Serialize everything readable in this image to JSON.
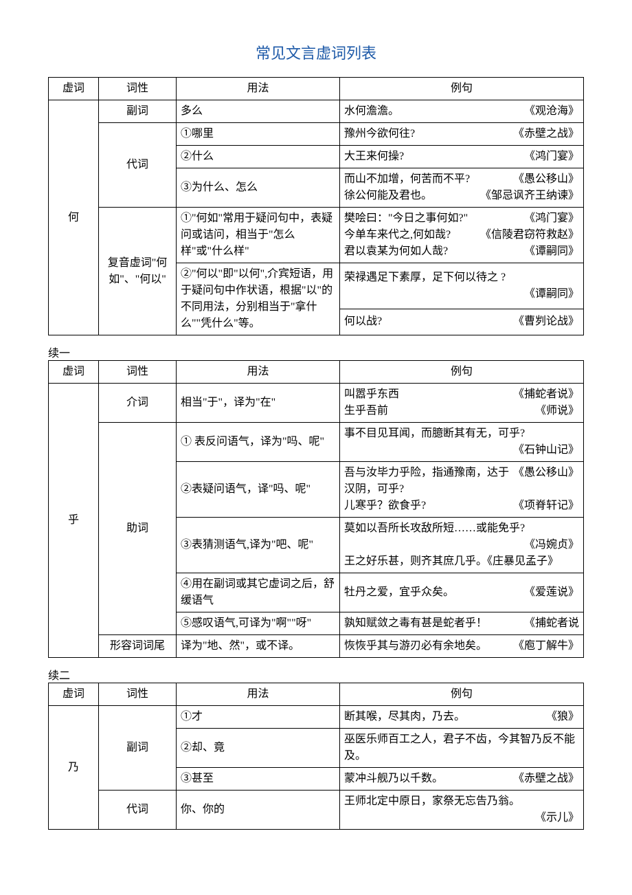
{
  "title": "常见文言虚词列表",
  "colors": {
    "title": "#1e5aa8",
    "text": "#000000",
    "border": "#000000",
    "background": "#ffffff"
  },
  "headers": {
    "xuci": "虚词",
    "cixing": "词性",
    "yongfa": "用法",
    "liju": "例句"
  },
  "labels": {
    "xu1": "续一",
    "xu2": "续二"
  },
  "t1": {
    "char": "何",
    "r1": {
      "cx": "副词",
      "yf": "多么",
      "ex": "水何澹澹。",
      "src": "《观沧海》"
    },
    "r2": {
      "cx": "代词",
      "yf": "①哪里",
      "ex": "豫州今欲何往?",
      "src": "《赤壁之战》"
    },
    "r3": {
      "yf": "②什么",
      "ex": "大王来何操?",
      "src": "《鸿门宴》"
    },
    "r4": {
      "yf": "③为什么、怎么",
      "ex1": "而山不加增，何苦而不平?",
      "src1": "《愚公移山》",
      "ex2": "徐公何能及君也。",
      "src2": "《邹忌讽齐王纳谏》"
    },
    "r5": {
      "cx": "复音虚词\"何如\"、\"何以\"",
      "yf": "①\"何如\"常用于疑问句中，表疑问或诘问，相当于\"怎么样\"或\"什么样\"",
      "ex1": "樊哙曰：\"今日之事何如?\"",
      "src1": "《鸿门宴》",
      "ex2": "今单车来代之,何如哉?",
      "src2": "《信陵君窃符救赵》",
      "ex3": "君以袁某为何如人哉?",
      "src3": "《谭嗣同》"
    },
    "r6": {
      "yf": "②\"何以\"即\"以何\",介宾短语，用于疑问句中作状语，根据\"以\"的不同用法，分别相当于\"拿什么\"\"凭什么\"等。",
      "ex1": "荣禄遇足下素厚，足下何以待之  ?",
      "src1": "《谭嗣同》",
      "ex2": "何以战?",
      "src2": "《曹刿论战》"
    }
  },
  "t2": {
    "char": "乎",
    "r1": {
      "cx": "介词",
      "yf": "相当\"于\"，译为\"在\"",
      "ex1": "叫嚣乎东西",
      "src1": "《捕蛇者说》",
      "ex2": "生乎吾前",
      "src2": "《师说》"
    },
    "r2": {
      "cx": "助词",
      "yf": "① 表反问语气，译为\"吗、呢\"",
      "ex": "事不目见耳闻，而臆断其有无，可乎?",
      "src": "《石钟山记》"
    },
    "r3": {
      "yf": "②表疑问语气，译\"吗、呢\"",
      "ex1": "吾与汝毕力乎险，指通豫南，达于汉阴，可乎?",
      "src1": "《愚公移山》",
      "ex2": "儿寒乎？欲食乎?",
      "src2": "《项脊轩记》"
    },
    "r4": {
      "yf": "③表猜测语气,译为\"吧、呢\"",
      "ex1": "莫如以吾所长攻敌所短……或能免乎?",
      "src1": "《冯婉贞》",
      "ex2": "王之好乐甚，则齐其庶几乎。《庄暴见孟子》"
    },
    "r5": {
      "yf": "④用在副词或其它虚词之后，舒缓语气",
      "ex": "牡丹之爱，宜乎众矣。",
      "src": "《爱莲说》"
    },
    "r6": {
      "yf": "⑤感叹语气,可译为\"啊\"\"呀\"",
      "ex": "孰知赋敛之毒有甚是蛇者乎！",
      "src": "《捕蛇者说"
    },
    "r7": {
      "cx": "形容词词尾",
      "yf": "译为\"地、然\"，或不译。",
      "ex": "恢恢乎其与游刃必有余地矣。",
      "src": "《庖丁解牛》"
    }
  },
  "t3": {
    "char": "乃",
    "r1": {
      "cx": "副词",
      "yf": "①才",
      "ex": "断其喉，尽其肉，乃去。",
      "src": "《狼》"
    },
    "r2": {
      "yf": "②却、竟",
      "ex": "巫医乐师百工之人，君子不齿，今其智乃反不能及。"
    },
    "r3": {
      "yf": "③甚至",
      "ex": "蒙冲斗舰乃以千数。",
      "src": "《赤壁之战》"
    },
    "r4": {
      "cx": "代词",
      "yf": "你、你的",
      "ex": "王师北定中原日，家祭无忘告乃翁。",
      "src": "《示儿》"
    }
  }
}
